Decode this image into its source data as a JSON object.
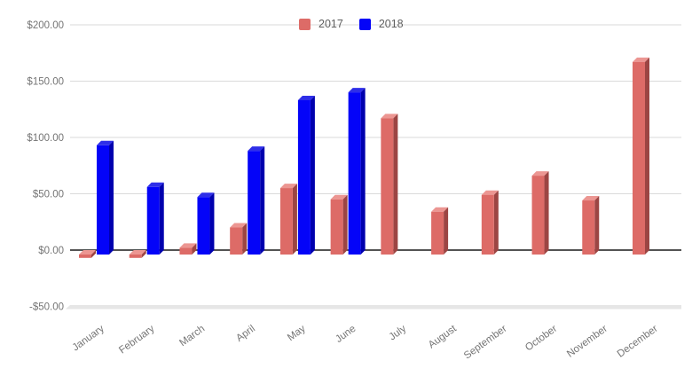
{
  "chart_data": {
    "type": "bar",
    "title": "",
    "xlabel": "",
    "ylabel": "",
    "categories": [
      "January",
      "February",
      "March",
      "April",
      "May",
      "June",
      "July",
      "August",
      "September",
      "October",
      "November",
      "December"
    ],
    "series": [
      {
        "name": "2017",
        "color": "#DD6B67",
        "color_top": "#EC9692",
        "color_side": "#9C4543",
        "values": [
          -3,
          -3,
          6,
          24,
          59,
          49,
          121,
          38,
          53,
          70,
          48,
          171
        ]
      },
      {
        "name": "2018",
        "color": "#0404F8",
        "color_top": "#2E2EE8",
        "color_side": "#0000AE",
        "values": [
          97,
          60,
          51,
          92,
          137,
          144,
          null,
          null,
          null,
          null,
          null,
          null
        ]
      }
    ],
    "yticks": [
      {
        "value": 200,
        "label": "$200.00"
      },
      {
        "value": 150,
        "label": "$150.00"
      },
      {
        "value": 100,
        "label": "$100.00"
      },
      {
        "value": 50,
        "label": "$50.00"
      },
      {
        "value": 0,
        "label": "$0.00"
      },
      {
        "value": -50,
        "label": "-$50.00"
      }
    ],
    "ylim": [
      -50,
      200
    ],
    "grid": true,
    "legend_position": "top-center",
    "style": "3d-columns",
    "colors": {
      "gridline": "#DADADA",
      "zero_line": "#1A1A1A",
      "axis_text": "#757575",
      "legend_text": "#5F5F5F",
      "background": "#FFFFFF",
      "floor": "#E6E6E6"
    }
  }
}
